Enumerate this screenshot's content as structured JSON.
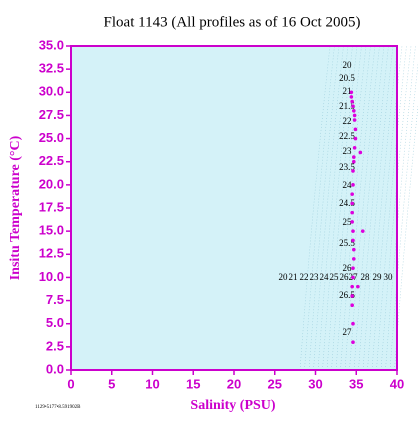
{
  "chart_data": {
    "type": "scatter",
    "title": "Float 1143  (All profiles as of 16 Oct 2005)",
    "xlabel": "Salinity (PSU)",
    "ylabel": "Insitu Temperature (°C)",
    "footnote": "1129•5177•8.591902B",
    "background": "#d4f2f8",
    "axis_color": "#cc00cc",
    "xlim": [
      0,
      40
    ],
    "xticks": [
      0,
      5,
      10,
      15,
      20,
      25,
      30,
      35,
      40
    ],
    "ylim": [
      0,
      35
    ],
    "yticks": [
      {
        "value": 0,
        "label": "0.0"
      },
      {
        "value": 2.5,
        "label": "2.5"
      },
      {
        "value": 5,
        "label": "5.0"
      },
      {
        "value": 7.5,
        "label": "7.5"
      },
      {
        "value": 10,
        "label": "10.0"
      },
      {
        "value": 12.5,
        "label": "12.5"
      },
      {
        "value": 15,
        "label": "15.0"
      },
      {
        "value": 17.5,
        "label": "17.5"
      },
      {
        "value": 20,
        "label": "20.0"
      },
      {
        "value": 22.5,
        "label": "22.5"
      },
      {
        "value": 25,
        "label": "25.0"
      },
      {
        "value": 27.5,
        "label": "27.5"
      },
      {
        "value": 30,
        "label": "30.0"
      },
      {
        "value": 32.5,
        "label": "32.5"
      },
      {
        "value": 35,
        "label": "35.0"
      }
    ],
    "contour_labels_right": [
      "20",
      "20.5",
      "21",
      "21.5",
      "22",
      "22.5",
      "23",
      "23.5",
      "24",
      "24.5",
      "25",
      "25.5",
      "26",
      "26.5",
      "27"
    ],
    "contour_labels_bottom": [
      "20",
      "21",
      "22",
      "23",
      "24",
      "25",
      "26",
      "27",
      "28",
      "29",
      "30"
    ],
    "series": [
      {
        "name": "profiles",
        "color": "#dd00dd",
        "x": [
          34.4,
          34.4,
          34.5,
          34.6,
          34.7,
          34.8,
          34.8,
          34.9,
          34.9,
          34.8,
          34.7,
          34.7,
          34.6,
          34.6,
          34.5,
          34.5,
          34.5,
          34.5,
          34.6,
          34.6,
          34.7,
          34.7,
          34.6,
          34.6,
          34.5,
          34.5,
          34.5,
          34.6,
          34.6,
          35.5,
          35.8,
          35.2
        ],
        "values": [
          30,
          29.5,
          29,
          28.5,
          28,
          27.5,
          27,
          26,
          25,
          24,
          23,
          22.5,
          21.5,
          20,
          19,
          18,
          17,
          16,
          15,
          14,
          13,
          12,
          11,
          10,
          9,
          8,
          7,
          5,
          3,
          23.5,
          15,
          9
        ]
      }
    ]
  }
}
